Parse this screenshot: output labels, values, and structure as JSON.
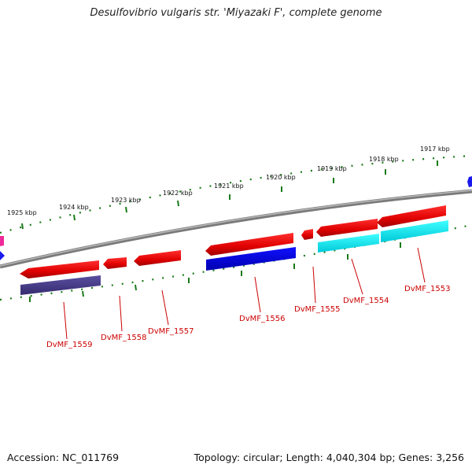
{
  "title": "Desulfovibrio vulgaris str. 'Miyazaki F', complete genome",
  "footer": {
    "accession": "Accession: NC_011769",
    "topology": "Topology: circular; Length: 4,040,304 bp; Genes: 3,256"
  },
  "colors": {
    "forward_gene": "#ee0000",
    "reverse_gene_blue": "#0000dd",
    "reverse_gene_purple": "#4a3f8a",
    "reverse_gene_cyan": "#00eeee",
    "backbone": "#7a7a7a",
    "tick": "#1a7a1a",
    "label": "#cc0000"
  },
  "ruler": {
    "unit": "kbp",
    "ticks": [
      {
        "value": 1925,
        "label": "1925 kbp"
      },
      {
        "value": 1924,
        "label": "1924 kbp"
      },
      {
        "value": 1923,
        "label": "1923 kbp"
      },
      {
        "value": 1922,
        "label": "1922 kbp"
      },
      {
        "value": 1921,
        "label": "1921 kbp"
      },
      {
        "value": 1920,
        "label": "1920 kbp"
      },
      {
        "value": 1919,
        "label": "1919 kbp"
      },
      {
        "value": 1918,
        "label": "1918 kbp"
      },
      {
        "value": 1917,
        "label": "1917 kbp"
      }
    ]
  },
  "genes": [
    {
      "locus_tag": "DvMF_1559",
      "strand": "reverse",
      "color": "purple"
    },
    {
      "locus_tag": "DvMF_1558",
      "strand": "forward",
      "color": "red"
    },
    {
      "locus_tag": "DvMF_1557",
      "strand": "forward",
      "color": "red"
    },
    {
      "locus_tag": "DvMF_1556",
      "strand": "reverse",
      "color": "blue"
    },
    {
      "locus_tag": "DvMF_1555",
      "strand": "forward",
      "color": "red"
    },
    {
      "locus_tag": "DvMF_1554",
      "strand": "reverse",
      "color": "cyan"
    },
    {
      "locus_tag": "DvMF_1553",
      "strand": "reverse",
      "color": "cyan"
    }
  ]
}
